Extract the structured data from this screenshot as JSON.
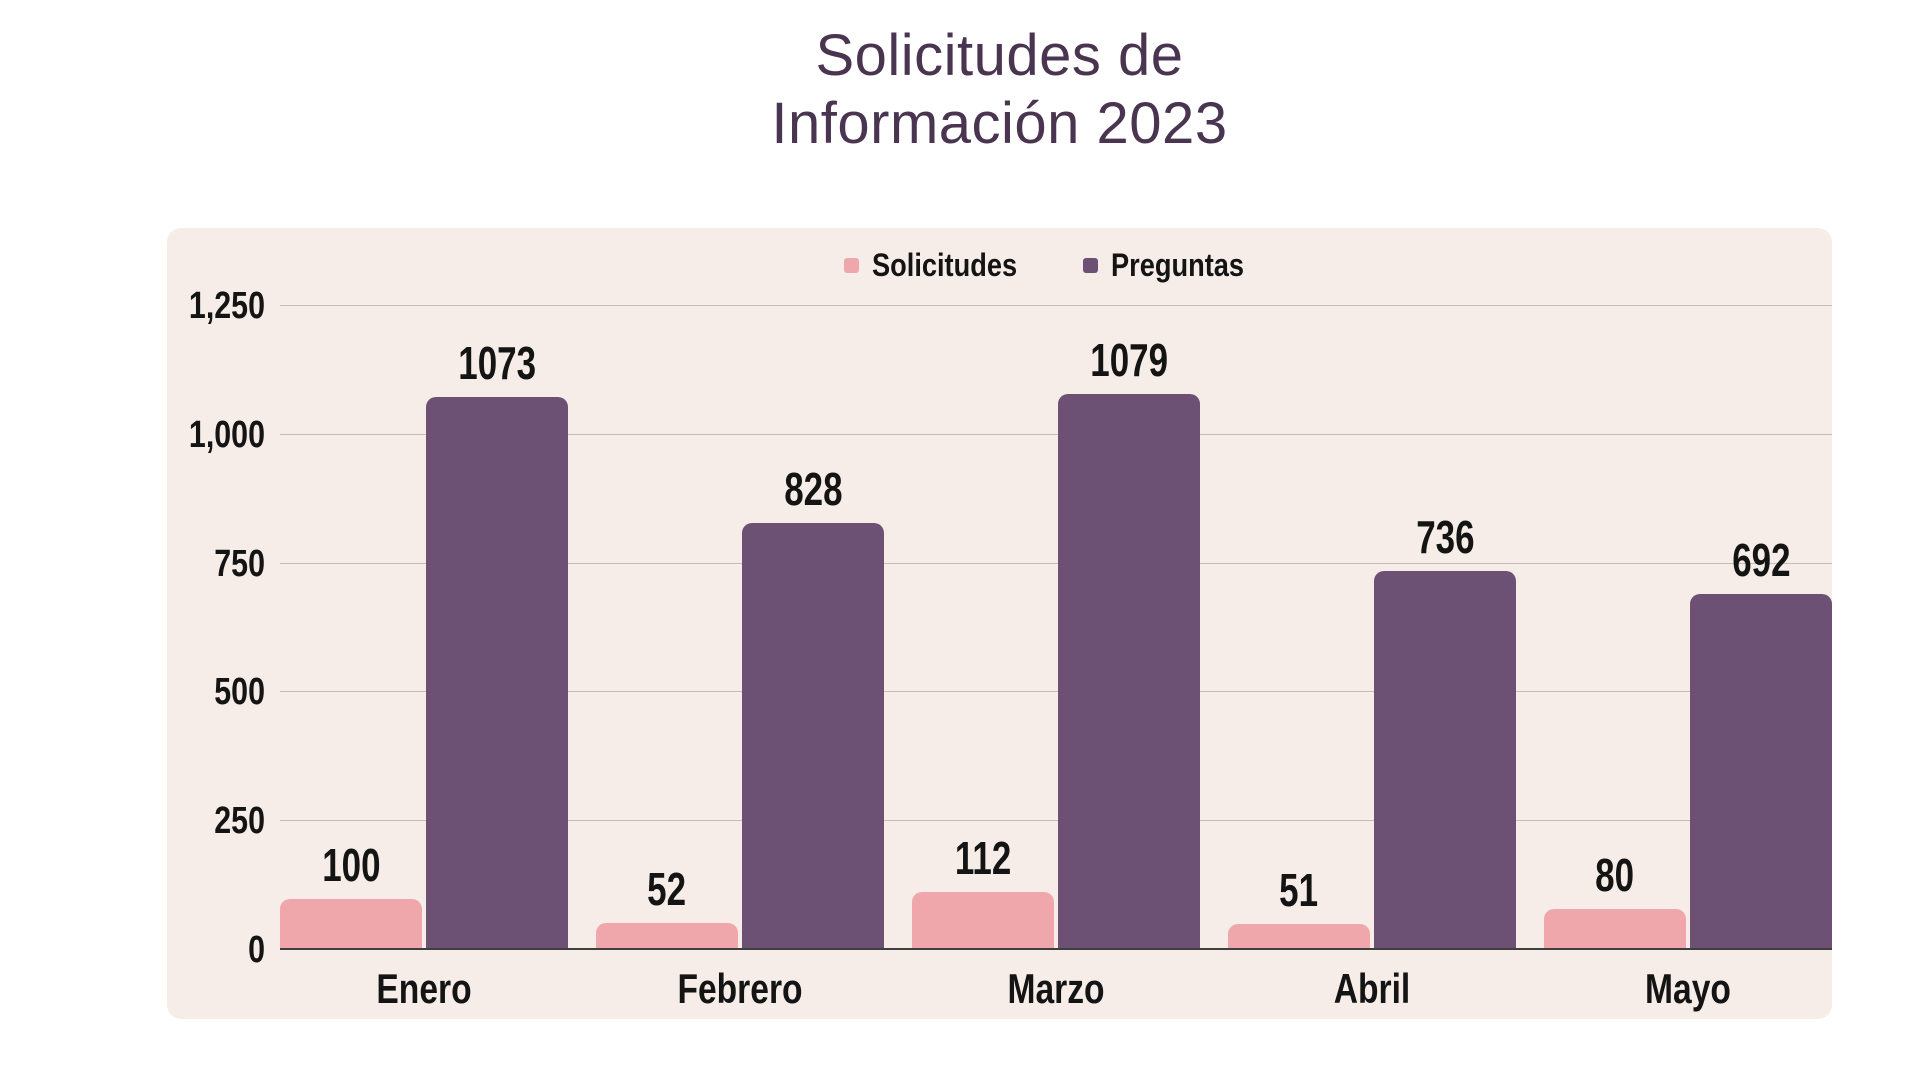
{
  "title": {
    "line1": "Solicitudes de",
    "line2": "Información 2023"
  },
  "colors": {
    "page_background": "#FFFFFF",
    "panel_background": "#F6EDE8",
    "title_text": "#4A3551",
    "label_text": "#141414",
    "gridline": "#C6BCB7",
    "baseline": "#3F3F3F",
    "solicitudes": "#F0A7AC",
    "preguntas": "#6C5174"
  },
  "chart_data": {
    "type": "bar",
    "title": "Solicitudes de Información 2023",
    "xlabel": "",
    "ylabel": "",
    "categories": [
      "Enero",
      "Febrero",
      "Marzo",
      "Abril",
      "Mayo"
    ],
    "series": [
      {
        "name": "Solicitudes",
        "color": "#F0A7AC",
        "values": [
          100,
          52,
          112,
          51,
          80
        ]
      },
      {
        "name": "Preguntas",
        "color": "#6C5174",
        "values": [
          1073,
          828,
          1079,
          736,
          692
        ]
      }
    ],
    "value_labels": true,
    "ylim": [
      0,
      1250
    ],
    "yticks": [
      0,
      250,
      500,
      750,
      1000,
      1250
    ],
    "ytick_labels": [
      "0",
      "250",
      "500",
      "750",
      "1,000",
      "1,250"
    ],
    "grid": "horizontal",
    "legend_position": "top-center"
  }
}
